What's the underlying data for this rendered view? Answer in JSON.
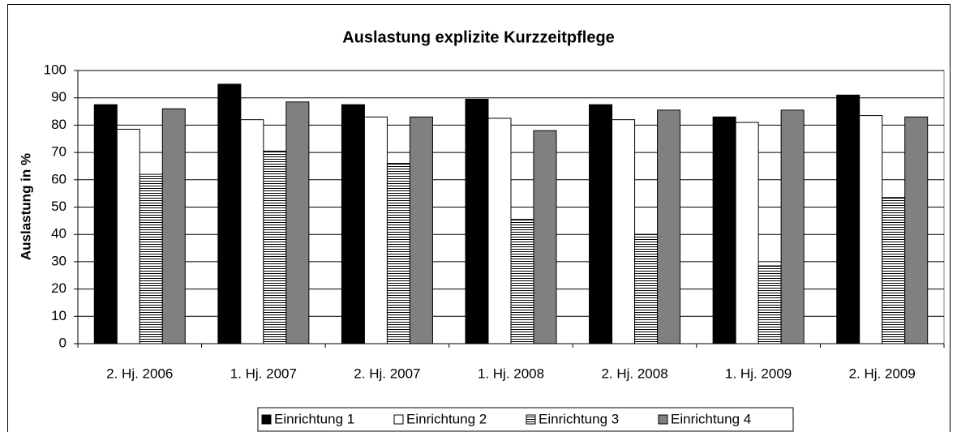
{
  "chart_data": {
    "type": "bar",
    "title": "Auslastung explizite Kurzzeitpflege",
    "y_label": "Auslastung in %",
    "categories": [
      "2. Hj. 2006",
      "1. Hj. 2007",
      "2. Hj. 2007",
      "1. Hj. 2008",
      "2. Hj. 2008",
      "1. Hj. 2009",
      "2. Hj. 2009"
    ],
    "series": [
      {
        "name": "Einrichtung 1",
        "color": "#000000",
        "values": [
          87.5,
          95,
          87.5,
          89.5,
          87.5,
          83,
          91
        ]
      },
      {
        "name": "Einrichtung 2",
        "color": "#ffffff",
        "values": [
          78.5,
          82,
          83,
          82.5,
          82,
          81,
          83.5
        ]
      },
      {
        "name": "Einrichtung 3",
        "color": "#ffffff",
        "hatch": "horizontal",
        "values": [
          62,
          70.5,
          66,
          45.5,
          40,
          28.5,
          53.5
        ]
      },
      {
        "name": "Einrichtung 4",
        "color": "#808080",
        "values": [
          86,
          88.5,
          83,
          78,
          85.5,
          85.5,
          83
        ]
      }
    ],
    "ylim": [
      0,
      100
    ],
    "yticks": [
      0,
      10,
      20,
      30,
      40,
      50,
      60,
      70,
      80,
      90,
      100
    ],
    "grid": true,
    "legend": "bottom"
  }
}
